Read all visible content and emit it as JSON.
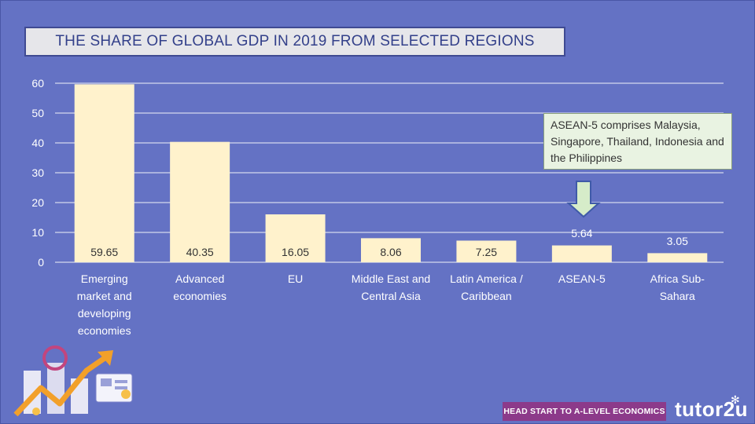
{
  "chart_data": {
    "type": "bar",
    "title": "THE SHARE OF GLOBAL GDP IN 2019 FROM SELECTED REGIONS",
    "categories": [
      "Emerging market and developing economies",
      "Advanced economies",
      "EU",
      "Middle East and Central Asia",
      "Latin America / Caribbean",
      "ASEAN-5",
      "Africa Sub-Sahara"
    ],
    "category_lines": [
      [
        "Emerging",
        "market and",
        "developing",
        "economies"
      ],
      [
        "Advanced",
        "economies"
      ],
      [
        "EU"
      ],
      [
        "Middle East and",
        "Central Asia"
      ],
      [
        "Latin America /",
        "Caribbean"
      ],
      [
        "ASEAN-5"
      ],
      [
        "Africa Sub-",
        "Sahara"
      ]
    ],
    "values": [
      59.65,
      40.35,
      16.05,
      8.06,
      7.25,
      5.64,
      3.05
    ],
    "value_labels": [
      "59.65",
      "40.35",
      "16.05",
      "8.06",
      "7.25",
      "5.64",
      "3.05"
    ],
    "yticks": [
      "0",
      "10",
      "20",
      "30",
      "40",
      "50",
      "60"
    ],
    "ylim": [
      0,
      60
    ],
    "xlabel": "",
    "ylabel": "",
    "grid": true,
    "legend": "none",
    "annotation": "ASEAN-5 comprises Malaysia, Singapore, Thailand, Indonesia and the Philippines",
    "colors": {
      "background": "#6472c4",
      "bar": "#fff2cc",
      "text": "#ffffff",
      "grid": "#ffffff",
      "arrow_fill": "#d6ecc9",
      "arrow_stroke": "#3f5aa8"
    }
  },
  "footer": {
    "tagline": "HEAD START TO A-LEVEL ECONOMICS",
    "logo": "tutor2u"
  }
}
